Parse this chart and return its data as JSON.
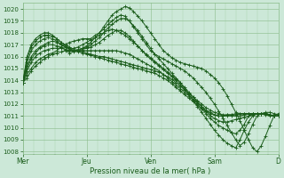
{
  "bg_color": "#cce8d8",
  "grid_color_major": "#88bb88",
  "grid_color_minor": "#aad0aa",
  "line_color": "#1a5c1a",
  "ylabel_values": [
    1008,
    1009,
    1010,
    1011,
    1012,
    1013,
    1014,
    1015,
    1016,
    1017,
    1018,
    1019,
    1020
  ],
  "ylim": [
    1007.8,
    1020.5
  ],
  "xlabel": "Pression niveau de la mer( hPa )",
  "xtick_labels": [
    "Mer",
    "Jeu",
    "Ven",
    "Sam",
    "D"
  ],
  "series": [
    [
      1013.8,
      1014.2,
      1014.8,
      1015.2,
      1015.5,
      1015.8,
      1016.0,
      1016.2,
      1016.3,
      1016.4,
      1016.5,
      1016.3,
      1016.4,
      1016.5,
      1016.7,
      1016.9,
      1017.2,
      1017.6,
      1018.0,
      1018.5,
      1019.0,
      1019.5,
      1019.8,
      1020.0,
      1020.2,
      1020.1,
      1019.8,
      1019.4,
      1019.0,
      1018.5,
      1018.0,
      1017.5,
      1017.0,
      1016.5,
      1016.2,
      1015.9,
      1015.7,
      1015.5,
      1015.4,
      1015.3,
      1015.2,
      1015.1,
      1015.0,
      1014.8,
      1014.5,
      1014.2,
      1013.8,
      1013.3,
      1012.7,
      1012.0,
      1011.3,
      1010.6,
      1009.8,
      1009.0,
      1008.3,
      1008.0,
      1008.5,
      1009.3,
      1010.2,
      1011.0,
      1011.2
    ],
    [
      1013.8,
      1014.5,
      1015.0,
      1015.5,
      1015.8,
      1016.0,
      1016.2,
      1016.3,
      1016.5,
      1016.8,
      1017.0,
      1017.2,
      1017.3,
      1017.4,
      1017.5,
      1017.5,
      1017.5,
      1017.8,
      1018.0,
      1018.3,
      1018.7,
      1019.0,
      1019.3,
      1019.5,
      1019.4,
      1019.0,
      1018.5,
      1018.0,
      1017.5,
      1017.0,
      1016.5,
      1016.2,
      1016.0,
      1015.8,
      1015.6,
      1015.4,
      1015.2,
      1015.0,
      1014.8,
      1014.5,
      1014.2,
      1013.8,
      1013.4,
      1013.0,
      1012.5,
      1012.0,
      1011.4,
      1010.8,
      1010.2,
      1009.6,
      1009.0,
      1008.5,
      1008.8,
      1009.5,
      1010.3,
      1011.0,
      1011.2,
      1011.3,
      1011.3,
      1011.2,
      1011.1
    ],
    [
      1013.8,
      1015.2,
      1016.0,
      1016.5,
      1016.8,
      1017.0,
      1017.2,
      1017.3,
      1017.2,
      1017.0,
      1016.8,
      1016.6,
      1016.7,
      1016.8,
      1017.0,
      1017.2,
      1017.4,
      1017.6,
      1017.8,
      1018.0,
      1018.2,
      1018.3,
      1018.2,
      1018.0,
      1017.8,
      1017.5,
      1017.2,
      1016.9,
      1016.5,
      1016.2,
      1015.9,
      1015.6,
      1015.3,
      1015.0,
      1014.7,
      1014.4,
      1014.1,
      1013.8,
      1013.4,
      1013.0,
      1012.6,
      1012.2,
      1011.8,
      1011.4,
      1011.0,
      1010.8,
      1010.6,
      1010.5,
      1010.5,
      1010.6,
      1010.7,
      1010.8,
      1010.9,
      1011.0,
      1011.1,
      1011.2,
      1011.2,
      1011.2,
      1011.1,
      1011.0,
      1011.0
    ],
    [
      1013.8,
      1015.5,
      1016.5,
      1017.0,
      1017.3,
      1017.5,
      1017.6,
      1017.5,
      1017.3,
      1017.0,
      1016.8,
      1016.6,
      1016.5,
      1016.5,
      1016.5,
      1016.5,
      1016.5,
      1016.5,
      1016.5,
      1016.5,
      1016.5,
      1016.5,
      1016.5,
      1016.4,
      1016.3,
      1016.2,
      1016.0,
      1015.8,
      1015.6,
      1015.4,
      1015.2,
      1015.0,
      1014.8,
      1014.5,
      1014.2,
      1013.9,
      1013.6,
      1013.3,
      1013.0,
      1012.7,
      1012.4,
      1012.1,
      1011.8,
      1011.5,
      1011.3,
      1011.1,
      1011.0,
      1011.0,
      1011.0,
      1011.0,
      1011.0,
      1011.0,
      1011.1,
      1011.2,
      1011.2,
      1011.2,
      1011.2,
      1011.2,
      1011.1,
      1011.0,
      1011.0
    ],
    [
      1013.8,
      1015.8,
      1016.8,
      1017.3,
      1017.6,
      1017.8,
      1017.8,
      1017.7,
      1017.5,
      1017.2,
      1017.0,
      1016.8,
      1016.6,
      1016.5,
      1016.4,
      1016.3,
      1016.2,
      1016.1,
      1016.0,
      1016.0,
      1015.9,
      1015.8,
      1015.7,
      1015.6,
      1015.5,
      1015.4,
      1015.3,
      1015.2,
      1015.1,
      1015.0,
      1014.9,
      1014.8,
      1014.7,
      1014.5,
      1014.3,
      1014.1,
      1013.8,
      1013.5,
      1013.2,
      1012.9,
      1012.6,
      1012.3,
      1012.0,
      1011.7,
      1011.5,
      1011.3,
      1011.2,
      1011.1,
      1011.1,
      1011.1,
      1011.1,
      1011.2,
      1011.2,
      1011.2,
      1011.2,
      1011.2,
      1011.2,
      1011.2,
      1011.1,
      1011.0,
      1011.0
    ],
    [
      1013.8,
      1016.0,
      1017.0,
      1017.5,
      1017.8,
      1018.0,
      1018.0,
      1017.8,
      1017.5,
      1017.2,
      1016.9,
      1016.7,
      1016.5,
      1016.4,
      1016.3,
      1016.2,
      1016.1,
      1016.0,
      1015.9,
      1015.8,
      1015.7,
      1015.6,
      1015.5,
      1015.4,
      1015.3,
      1015.2,
      1015.1,
      1015.0,
      1014.9,
      1014.8,
      1014.7,
      1014.6,
      1014.4,
      1014.2,
      1014.0,
      1013.7,
      1013.4,
      1013.1,
      1012.8,
      1012.5,
      1012.2,
      1011.9,
      1011.6,
      1011.4,
      1011.2,
      1011.1,
      1011.0,
      1011.0,
      1011.1,
      1011.1,
      1011.2,
      1011.2,
      1011.2,
      1011.2,
      1011.2,
      1011.2,
      1011.2,
      1011.1,
      1011.0,
      1011.0,
      1011.0
    ],
    [
      1013.8,
      1015.0,
      1015.8,
      1016.3,
      1016.7,
      1016.9,
      1017.0,
      1017.0,
      1016.9,
      1016.8,
      1016.6,
      1016.5,
      1016.5,
      1016.5,
      1016.6,
      1016.7,
      1016.8,
      1017.0,
      1017.2,
      1017.5,
      1017.8,
      1018.0,
      1018.2,
      1018.2,
      1018.0,
      1017.7,
      1017.3,
      1016.9,
      1016.5,
      1016.1,
      1015.8,
      1015.5,
      1015.2,
      1014.9,
      1014.6,
      1014.3,
      1014.0,
      1013.6,
      1013.2,
      1012.8,
      1012.4,
      1012.0,
      1011.6,
      1011.2,
      1010.8,
      1010.5,
      1010.2,
      1010.0,
      1009.8,
      1009.6,
      1009.5,
      1009.8,
      1010.3,
      1011.0,
      1011.2,
      1011.2,
      1011.2,
      1011.2,
      1011.1,
      1011.0,
      1011.0
    ],
    [
      1013.8,
      1014.8,
      1015.5,
      1016.0,
      1016.3,
      1016.5,
      1016.6,
      1016.7,
      1016.7,
      1016.7,
      1016.6,
      1016.5,
      1016.5,
      1016.6,
      1016.7,
      1016.8,
      1017.0,
      1017.3,
      1017.6,
      1018.0,
      1018.4,
      1018.7,
      1019.0,
      1019.2,
      1019.2,
      1019.0,
      1018.6,
      1018.2,
      1017.7,
      1017.2,
      1016.7,
      1016.2,
      1015.8,
      1015.4,
      1015.0,
      1014.6,
      1014.2,
      1013.8,
      1013.3,
      1012.8,
      1012.3,
      1011.8,
      1011.3,
      1010.8,
      1010.3,
      1009.8,
      1009.4,
      1009.0,
      1008.7,
      1008.5,
      1008.3,
      1009.0,
      1009.8,
      1010.5,
      1011.0,
      1011.2,
      1011.2,
      1011.2,
      1011.1,
      1011.0,
      1011.0
    ]
  ]
}
